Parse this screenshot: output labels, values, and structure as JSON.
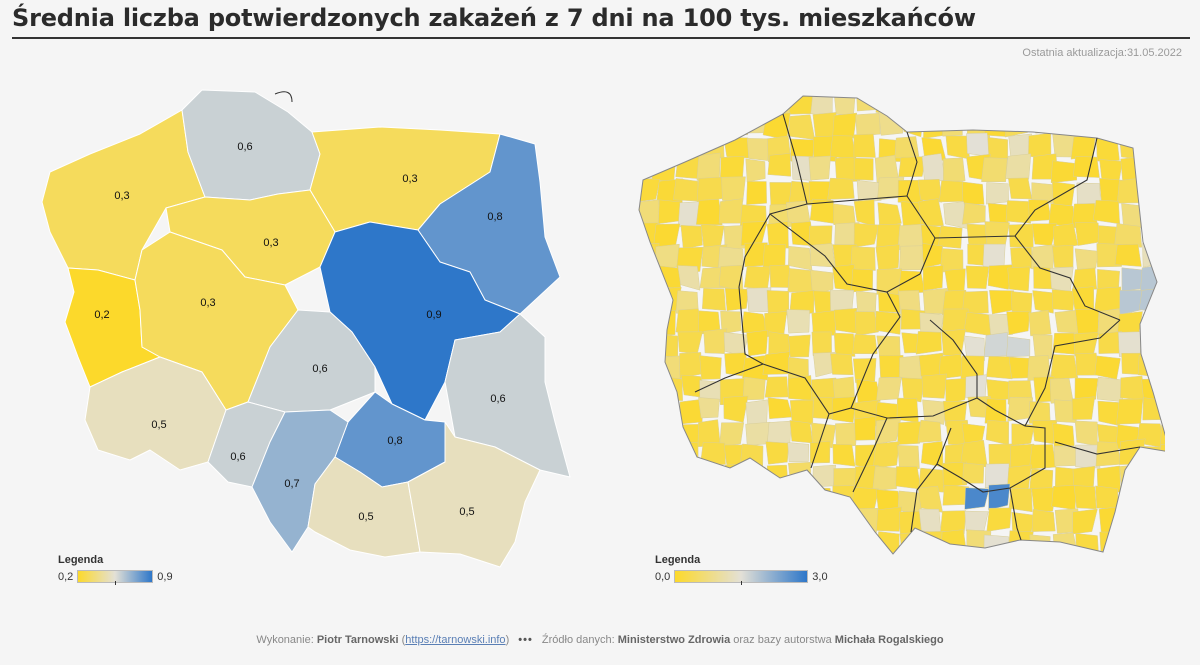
{
  "header": {
    "title": "Średnia liczba potwierdzonych zakażeń z 7 dni na 100 tys. mieszkańców",
    "update": "Ostatnia aktualizacja:31.05.2022"
  },
  "colors": {
    "low": "#fcd92b",
    "mid": "#e3e0d6",
    "high": "#2e77c9"
  },
  "left_map": {
    "regions": [
      {
        "label": "0,3",
        "value": 0.3
      },
      {
        "label": "0,6",
        "value": 0.6
      },
      {
        "label": "0,3",
        "value": 0.3
      },
      {
        "label": "0,8",
        "value": 0.8
      },
      {
        "label": "0,3",
        "value": 0.3
      },
      {
        "label": "0,2",
        "value": 0.2
      },
      {
        "label": "0,3",
        "value": 0.3
      },
      {
        "label": "0,9",
        "value": 0.9
      },
      {
        "label": "0,6",
        "value": 0.6
      },
      {
        "label": "0,6",
        "value": 0.6
      },
      {
        "label": "0,5",
        "value": 0.5
      },
      {
        "label": "0,6",
        "value": 0.6
      },
      {
        "label": "0,8",
        "value": 0.8
      },
      {
        "label": "0,7",
        "value": 0.7
      },
      {
        "label": "0,5",
        "value": 0.5
      },
      {
        "label": "0,5",
        "value": 0.5
      }
    ],
    "legend": {
      "title": "Legenda",
      "min": "0,2",
      "max": "0,9"
    }
  },
  "right_map": {
    "legend": {
      "title": "Legenda",
      "min": "0,0",
      "max": "3,0"
    }
  },
  "footer": {
    "made_by_label": "Wykonanie:",
    "author": "Piotr Tarnowski",
    "link": "https://tarnowski.info",
    "dots": "•••",
    "source_label": "Źródło danych:",
    "source": "Ministerstwo Zdrowia",
    "and": "oraz bazy autorstwa",
    "source2": "Michała Rogalskiego"
  }
}
